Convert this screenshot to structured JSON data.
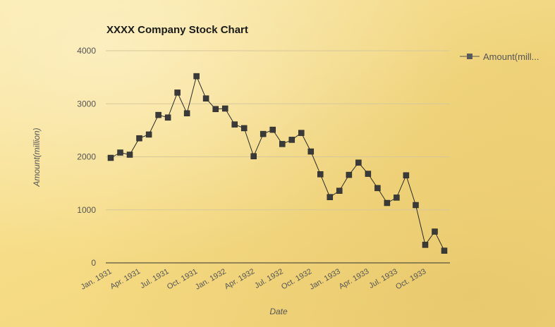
{
  "chart_data": {
    "type": "line",
    "title": "XXXX Company Stock Chart",
    "xlabel": "Date",
    "ylabel": "Amount(million)",
    "ylim": [
      0,
      4000
    ],
    "yticks": [
      0,
      1000,
      2000,
      3000,
      4000
    ],
    "grid": true,
    "legend": "top-right",
    "categories": [
      "Jan. 1931",
      "Feb. 1931",
      "Mar. 1931",
      "Apr. 1931",
      "May 1931",
      "Jun. 1931",
      "Jul. 1931",
      "Aug. 1931",
      "Sep. 1931",
      "Oct. 1931",
      "Nov. 1931",
      "Dec. 1931",
      "Jan. 1932",
      "Feb. 1932",
      "Mar. 1932",
      "Apr. 1932",
      "May 1932",
      "Jun. 1932",
      "Jul. 1932",
      "Aug. 1932",
      "Sep. 1932",
      "Oct. 1932",
      "Nov. 1932",
      "Dec. 1932",
      "Jan. 1933",
      "Feb. 1933",
      "Mar. 1933",
      "Apr. 1933",
      "May 1933",
      "Jun. 1933",
      "Jul. 1933",
      "Aug. 1933",
      "Sep. 1933",
      "Oct. 1933",
      "Nov. 1933",
      "Dec. 1933"
    ],
    "xtick_labels": [
      "Jan. 1931",
      "Apr. 1931",
      "Jul. 1931",
      "Oct. 1931",
      "Jan. 1932",
      "Apr. 1932",
      "Jul. 1932",
      "Oct. 1932",
      "Jan. 1933",
      "Apr. 1933",
      "Jul. 1933",
      "Oct. 1933"
    ],
    "series": [
      {
        "name": "Amount(mill...",
        "color": "#3a3a3a",
        "values": [
          1980,
          2080,
          2040,
          2350,
          2420,
          2790,
          2740,
          3210,
          2820,
          3520,
          3100,
          2900,
          2910,
          2610,
          2540,
          2010,
          2430,
          2510,
          2240,
          2320,
          2450,
          2100,
          1670,
          1240,
          1360,
          1660,
          1890,
          1680,
          1410,
          1130,
          1230,
          1650,
          1090,
          340,
          590,
          230
        ]
      }
    ]
  }
}
